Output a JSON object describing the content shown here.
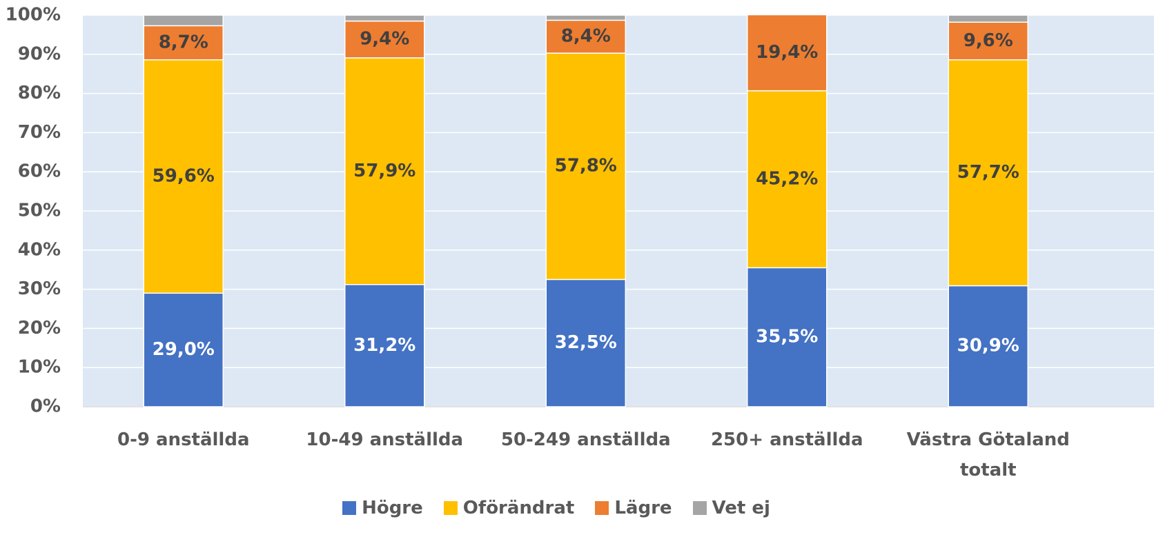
{
  "chart_data": {
    "type": "stacked-bar",
    "categories": [
      "0-9 anställda",
      "10-49 anställda",
      "50-249 anställda",
      "250+ anställda",
      "Västra Götaland totalt"
    ],
    "series": [
      {
        "name": "Högre",
        "color": "#4472c4",
        "values": [
          29.0,
          31.2,
          32.5,
          35.5,
          30.9
        ],
        "value_labels": [
          "29,0%",
          "31,2%",
          "32,5%",
          "35,5%",
          "30,9%"
        ]
      },
      {
        "name": "Oförändrat",
        "color": "#ffc000",
        "values": [
          59.6,
          57.9,
          57.8,
          45.2,
          57.7
        ],
        "value_labels": [
          "59,6%",
          "57,9%",
          "57,8%",
          "45,2%",
          "57,7%"
        ]
      },
      {
        "name": "Lägre",
        "color": "#ed7d31",
        "values": [
          8.7,
          9.4,
          8.4,
          19.4,
          9.6
        ],
        "value_labels": [
          "8,7%",
          "9,4%",
          "8,4%",
          "19,4%",
          "9,6%"
        ]
      },
      {
        "name": "Vet ej",
        "color": "#a5a5a5",
        "values": [
          2.7,
          1.5,
          1.3,
          0,
          1.8
        ]
      }
    ],
    "ylim": [
      0,
      100
    ],
    "yticks": [
      {
        "value": 0,
        "label": "0%"
      },
      {
        "value": 10,
        "label": "10%"
      },
      {
        "value": 20,
        "label": "20%"
      },
      {
        "value": 30,
        "label": "30%"
      },
      {
        "value": 40,
        "label": "40%"
      },
      {
        "value": 50,
        "label": "50%"
      },
      {
        "value": 60,
        "label": "60%"
      },
      {
        "value": 70,
        "label": "70%"
      },
      {
        "value": 80,
        "label": "80%"
      },
      {
        "value": 90,
        "label": "90%"
      },
      {
        "value": 100,
        "label": "100%"
      }
    ],
    "grid": true,
    "legend": "bottom"
  }
}
